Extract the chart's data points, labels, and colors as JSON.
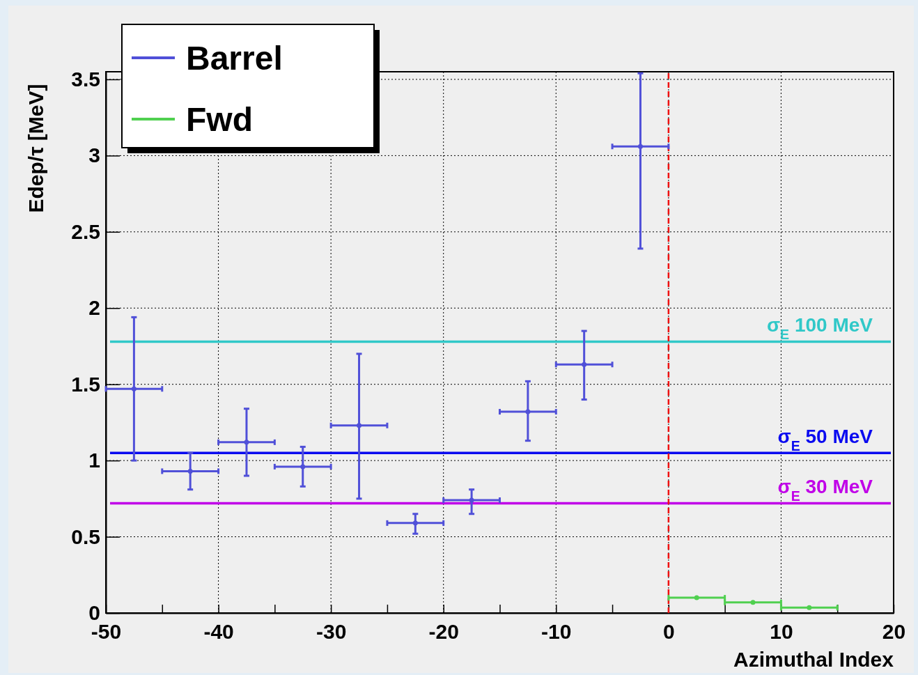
{
  "chart_data": {
    "type": "scatter",
    "xlabel": "Azimuthal Index",
    "ylabel": "Edep/τ [MeV]",
    "xlim": [
      -50,
      20
    ],
    "xticks": [
      -50,
      {
        "value": -45,
        "label": null
      },
      -40,
      {
        "value": -35,
        "label": null
      },
      -30,
      {
        "value": -25,
        "label": null
      },
      -20,
      {
        "value": -15,
        "label": null
      },
      -10,
      {
        "value": -5,
        "label": null
      },
      0,
      {
        "value": 5,
        "label": null
      },
      10,
      {
        "value": 15,
        "label": null
      },
      20
    ],
    "ylim": [
      0,
      3.55
    ],
    "yticks": [
      0,
      0.5,
      1,
      1.5,
      2,
      2.5,
      3,
      3.5
    ],
    "grid": true,
    "legend": "top left",
    "series": [
      {
        "name": "Barrel",
        "color": "#5050d8",
        "x": [
          -47.5,
          -42.5,
          -37.5,
          -32.5,
          -27.5,
          -22.5,
          -17.5,
          -12.5,
          -7.5,
          -2.5
        ],
        "values": [
          1.47,
          0.93,
          1.12,
          0.96,
          1.23,
          0.59,
          0.74,
          1.32,
          1.63,
          3.06
        ],
        "xerrors": [
          2.5,
          2.5,
          2.5,
          2.5,
          2.5,
          2.5,
          2.5,
          2.5,
          2.5,
          2.5
        ],
        "errors": [
          [
            1.0,
            1.94
          ],
          [
            0.81,
            1.05
          ],
          [
            0.9,
            1.34
          ],
          [
            0.83,
            1.09
          ],
          [
            0.75,
            1.7
          ],
          [
            0.52,
            0.65
          ],
          [
            0.65,
            0.81
          ],
          [
            1.13,
            1.52
          ],
          [
            1.4,
            1.85
          ],
          [
            2.39,
            3.54
          ]
        ]
      },
      {
        "name": "Fwd",
        "color": "#50d050",
        "x": [
          2.5,
          7.5,
          12.5
        ],
        "values": [
          0.1,
          0.07,
          0.035
        ],
        "xerrors": [
          2.5,
          2.5,
          2.5
        ]
      }
    ],
    "ref_lines": [
      {
        "axis": "y",
        "value": 1.78,
        "label": "σ$_{E}$  100 MeV",
        "color": "#30c8c8"
      },
      {
        "axis": "y",
        "value": 1.05,
        "label": "σ$_{E}$  50 MeV",
        "color": "#0a0af0"
      },
      {
        "axis": "y",
        "value": 0.72,
        "label": "σ$_{E}$  30 MeV",
        "color": "#c000e8"
      },
      {
        "axis": "x",
        "value": 0,
        "color": "#f01010",
        "line_style": "dashed"
      }
    ]
  }
}
